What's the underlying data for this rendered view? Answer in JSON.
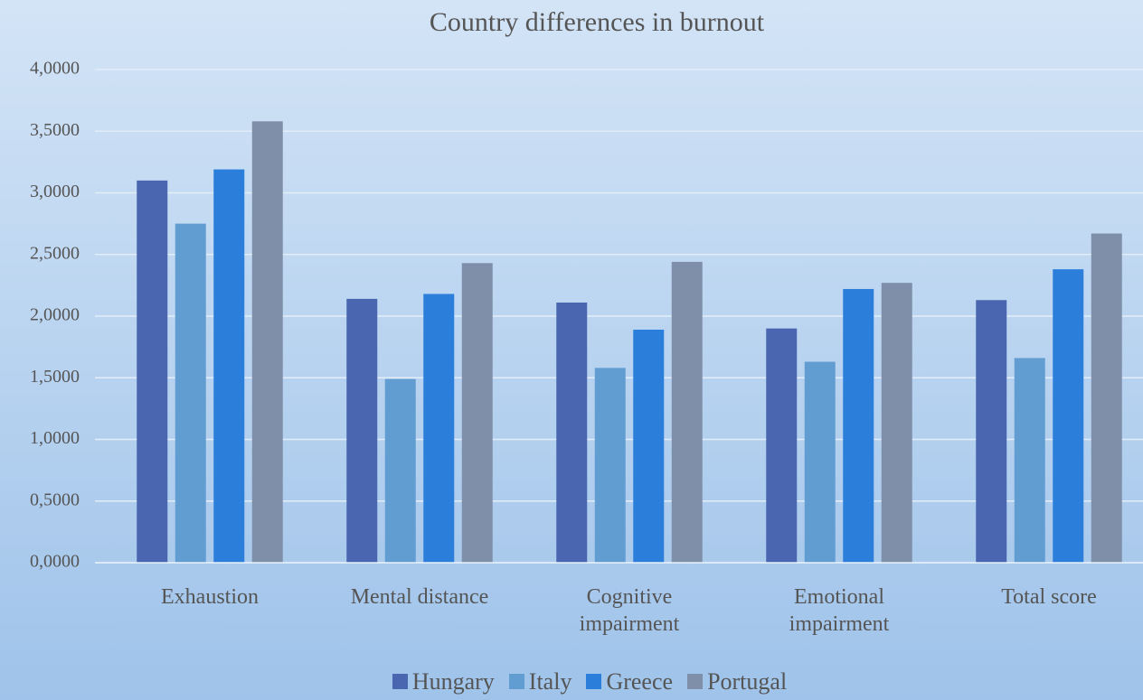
{
  "chart_data": {
    "type": "bar",
    "title": "Country differences in burnout",
    "categories": [
      "Exhaustion",
      "Mental distance",
      "Cognitive impairment",
      "Emotional impairment",
      "Total score"
    ],
    "series": [
      {
        "name": "Hungary",
        "color": "#4a66b0",
        "values": [
          3.1,
          2.14,
          2.11,
          1.9,
          2.13
        ]
      },
      {
        "name": "Italy",
        "color": "#629dd2",
        "values": [
          2.75,
          1.49,
          1.58,
          1.63,
          1.66
        ]
      },
      {
        "name": "Greece",
        "color": "#2b7ed9",
        "values": [
          3.19,
          2.18,
          1.89,
          2.22,
          2.38
        ]
      },
      {
        "name": "Portugal",
        "color": "#7f8fa9",
        "values": [
          3.58,
          2.43,
          2.44,
          2.27,
          2.67
        ]
      }
    ],
    "ylim": [
      0,
      4
    ],
    "yticks": [
      {
        "value": 0,
        "label": "0,0000"
      },
      {
        "value": 0.5,
        "label": "0,5000"
      },
      {
        "value": 1,
        "label": "1,0000"
      },
      {
        "value": 1.5,
        "label": "1,5000"
      },
      {
        "value": 2,
        "label": "2,0000"
      },
      {
        "value": 2.5,
        "label": "2,5000"
      },
      {
        "value": 3,
        "label": "3,0000"
      },
      {
        "value": 3.5,
        "label": "3,5000"
      },
      {
        "value": 4,
        "label": "4,0000"
      }
    ],
    "grid": true,
    "legend": "bottom"
  }
}
